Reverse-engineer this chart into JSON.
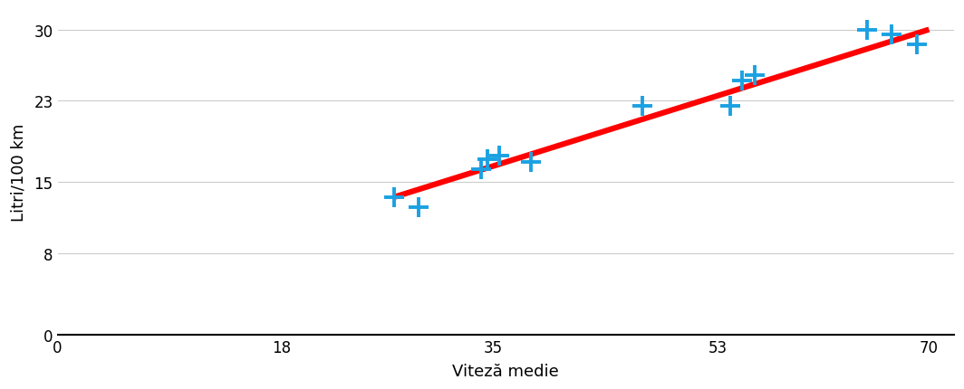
{
  "scatter_x": [
    27,
    29,
    34,
    34.5,
    35.5,
    38,
    47,
    54,
    55,
    56,
    65,
    67,
    69
  ],
  "scatter_y": [
    13.5,
    12.5,
    16.3,
    17.2,
    17.6,
    17.0,
    22.5,
    22.5,
    25.0,
    25.5,
    30.0,
    29.5,
    28.5
  ],
  "trend_x": [
    27.0,
    70.0
  ],
  "trend_y": [
    13.5,
    30.0
  ],
  "marker_color": "#1BA1E2",
  "trend_color": "#FF0000",
  "xlabel": "Viteză medie",
  "ylabel": "Litri/100 km",
  "xlim": [
    0,
    72
  ],
  "ylim": [
    0,
    32
  ],
  "xticks": [
    0,
    18,
    35,
    53,
    70
  ],
  "yticks": [
    0,
    8,
    15,
    23,
    30
  ],
  "marker_size": 120,
  "trend_linewidth": 4.5,
  "grid_color": "#CCCCCC",
  "background_color": "#FFFFFF",
  "xlabel_fontsize": 13,
  "ylabel_fontsize": 13,
  "tick_fontsize": 12
}
